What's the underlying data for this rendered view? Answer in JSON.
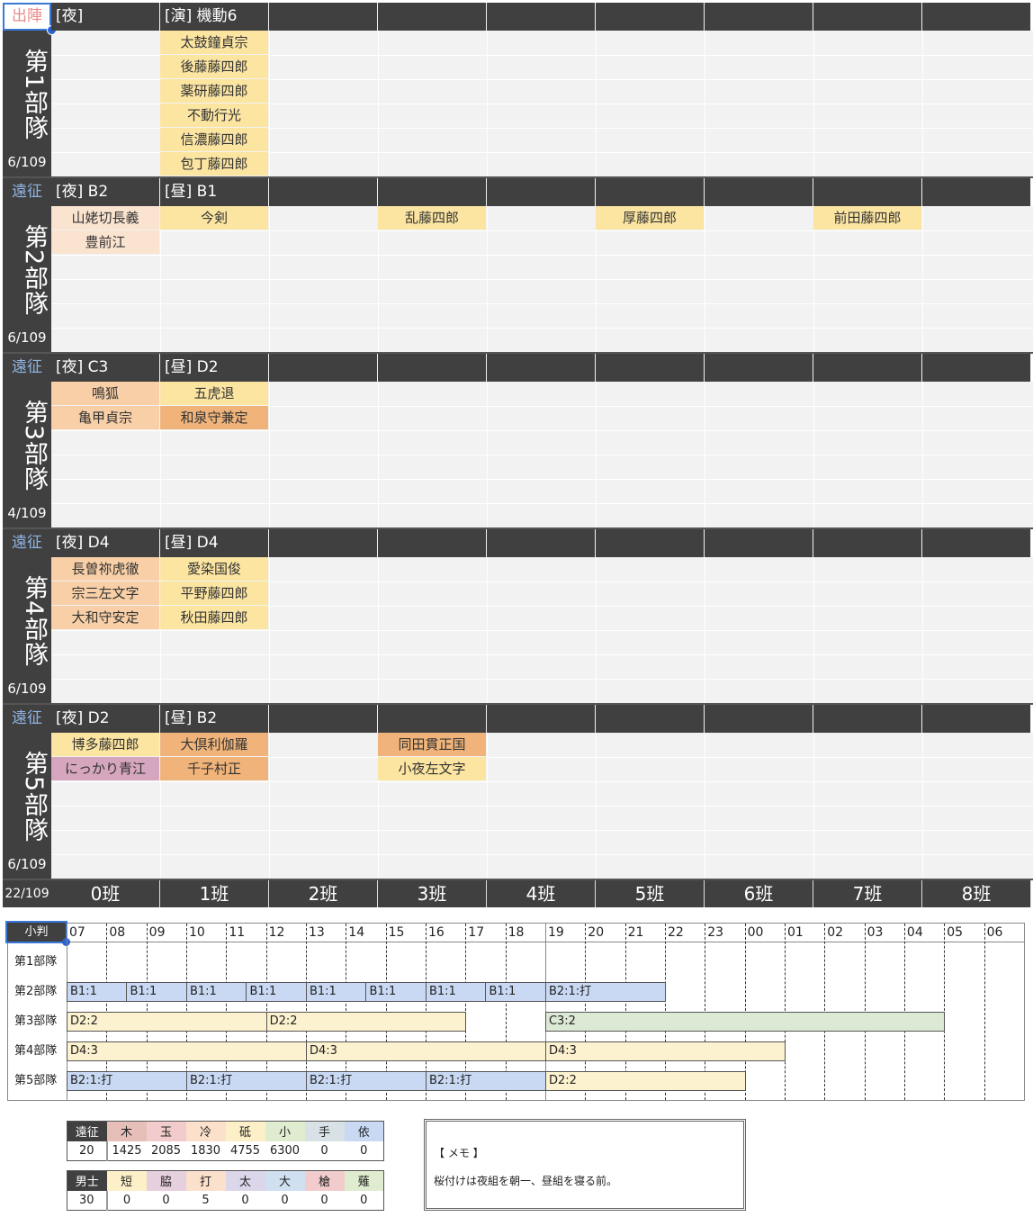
{
  "colors": {
    "yellow": "#fce5a1",
    "orange": "#f0b47a",
    "lightorange": "#f8cfa6",
    "peach": "#fae3cf",
    "pink": "#d5a6bd",
    "blue": "#c9d9f3",
    "cream": "#fdf2cf",
    "green": "#dce9d5",
    "badge_sortie": "#e88b8b",
    "badge_expedition": "#8fb4e3"
  },
  "units": [
    {
      "badge": "出陣",
      "badge_color": "badge_sortie",
      "title": "第1部隊",
      "count": "6/109",
      "headers": [
        "[夜]",
        "[演] 機動6",
        "",
        "",
        "",
        "",
        "",
        "",
        ""
      ],
      "members": [
        [],
        [
          {
            "n": "太鼓鐘貞宗",
            "c": "yellow"
          },
          {
            "n": "後藤藤四郎",
            "c": "yellow"
          },
          {
            "n": "薬研藤四郎",
            "c": "yellow"
          },
          {
            "n": "不動行光",
            "c": "yellow"
          },
          {
            "n": "信濃藤四郎",
            "c": "yellow"
          },
          {
            "n": "包丁藤四郎",
            "c": "yellow"
          }
        ],
        [],
        [],
        [],
        [],
        [],
        [],
        []
      ]
    },
    {
      "badge": "遠征",
      "badge_color": "badge_expedition",
      "title": "第2部隊",
      "count": "6/109",
      "headers": [
        "[夜] B2",
        "[昼] B1",
        "",
        "",
        "",
        "",
        "",
        "",
        ""
      ],
      "members": [
        [
          {
            "n": "山姥切長義",
            "c": "peach"
          },
          {
            "n": "豊前江",
            "c": "peach"
          }
        ],
        [
          {
            "n": "今剣",
            "c": "yellow"
          }
        ],
        [],
        [
          {
            "n": "乱藤四郎",
            "c": "yellow"
          }
        ],
        [],
        [
          {
            "n": "厚藤四郎",
            "c": "yellow"
          }
        ],
        [],
        [
          {
            "n": "前田藤四郎",
            "c": "yellow"
          }
        ],
        []
      ]
    },
    {
      "badge": "遠征",
      "badge_color": "badge_expedition",
      "title": "第3部隊",
      "count": "4/109",
      "headers": [
        "[夜] C3",
        "[昼] D2",
        "",
        "",
        "",
        "",
        "",
        "",
        ""
      ],
      "members": [
        [
          {
            "n": "鳴狐",
            "c": "lightorange"
          },
          {
            "n": "亀甲貞宗",
            "c": "lightorange"
          }
        ],
        [
          {
            "n": "五虎退",
            "c": "yellow"
          },
          {
            "n": "和泉守兼定",
            "c": "orange"
          }
        ],
        [],
        [],
        [],
        [],
        [],
        [],
        []
      ]
    },
    {
      "badge": "遠征",
      "badge_color": "badge_expedition",
      "title": "第4部隊",
      "count": "6/109",
      "headers": [
        "[夜] D4",
        "[昼] D4",
        "",
        "",
        "",
        "",
        "",
        "",
        ""
      ],
      "members": [
        [
          {
            "n": "長曽祢虎徹",
            "c": "lightorange"
          },
          {
            "n": "宗三左文字",
            "c": "lightorange"
          },
          {
            "n": "大和守安定",
            "c": "lightorange"
          }
        ],
        [
          {
            "n": "愛染国俊",
            "c": "yellow"
          },
          {
            "n": "平野藤四郎",
            "c": "yellow"
          },
          {
            "n": "秋田藤四郎",
            "c": "yellow"
          }
        ],
        [],
        [],
        [],
        [],
        [],
        [],
        []
      ]
    },
    {
      "badge": "遠征",
      "badge_color": "badge_expedition",
      "title": "第5部隊",
      "count": "6/109",
      "headers": [
        "[夜] D2",
        "[昼] B2",
        "",
        "",
        "",
        "",
        "",
        "",
        ""
      ],
      "members": [
        [
          {
            "n": "博多藤四郎",
            "c": "yellow"
          },
          {
            "n": "にっかり青江",
            "c": "pink"
          }
        ],
        [
          {
            "n": "大倶利伽羅",
            "c": "orange"
          },
          {
            "n": "千子村正",
            "c": "orange"
          }
        ],
        [],
        [
          {
            "n": "同田貫正国",
            "c": "orange"
          },
          {
            "n": "小夜左文字",
            "c": "yellow"
          }
        ],
        [],
        [],
        [],
        [],
        []
      ]
    }
  ],
  "total": "22/109",
  "teams": [
    "0班",
    "1班",
    "2班",
    "3班",
    "4班",
    "5班",
    "6班",
    "7班",
    "8班"
  ],
  "timeline": {
    "corner": "小判",
    "hours": [
      "07",
      "08",
      "09",
      "10",
      "11",
      "12",
      "13",
      "14",
      "15",
      "16",
      "17",
      "18",
      "19",
      "20",
      "21",
      "22",
      "23",
      "00",
      "01",
      "02",
      "03",
      "04",
      "05",
      "06"
    ],
    "rows": [
      {
        "label": "第1部隊",
        "bars": []
      },
      {
        "label": "第2部隊",
        "bars": [
          {
            "t": "B1:1",
            "s": 0,
            "e": 1.5,
            "c": "blue"
          },
          {
            "t": "B1:1",
            "s": 1.5,
            "e": 3,
            "c": "blue"
          },
          {
            "t": "B1:1",
            "s": 3,
            "e": 4.5,
            "c": "blue"
          },
          {
            "t": "B1:1",
            "s": 4.5,
            "e": 6,
            "c": "blue"
          },
          {
            "t": "B1:1",
            "s": 6,
            "e": 7.5,
            "c": "blue"
          },
          {
            "t": "B1:1",
            "s": 7.5,
            "e": 9,
            "c": "blue"
          },
          {
            "t": "B1:1",
            "s": 9,
            "e": 10.5,
            "c": "blue"
          },
          {
            "t": "B1:1",
            "s": 10.5,
            "e": 12,
            "c": "blue"
          },
          {
            "t": "B2:1:打",
            "s": 12,
            "e": 15,
            "c": "blue"
          }
        ]
      },
      {
        "label": "第3部隊",
        "bars": [
          {
            "t": "D2:2",
            "s": 0,
            "e": 5,
            "c": "cream"
          },
          {
            "t": "D2:2",
            "s": 5,
            "e": 10,
            "c": "cream"
          },
          {
            "t": "C3:2",
            "s": 12,
            "e": 22,
            "c": "green"
          }
        ]
      },
      {
        "label": "第4部隊",
        "bars": [
          {
            "t": "D4:3",
            "s": 0,
            "e": 6,
            "c": "cream"
          },
          {
            "t": "D4:3",
            "s": 6,
            "e": 12,
            "c": "cream"
          },
          {
            "t": "D4:3",
            "s": 12,
            "e": 18,
            "c": "cream"
          }
        ]
      },
      {
        "label": "第5部隊",
        "bars": [
          {
            "t": "B2:1:打",
            "s": 0,
            "e": 3,
            "c": "blue"
          },
          {
            "t": "B2:1:打",
            "s": 3,
            "e": 6,
            "c": "blue"
          },
          {
            "t": "B2:1:打",
            "s": 6,
            "e": 9,
            "c": "blue"
          },
          {
            "t": "B2:1:打",
            "s": 9,
            "e": 12,
            "c": "blue"
          },
          {
            "t": "D2:2",
            "s": 12,
            "e": 17,
            "c": "cream"
          }
        ]
      }
    ]
  },
  "stats": [
    {
      "key": "遠征",
      "value": "20",
      "cols": [
        {
          "h": "木",
          "v": "1425",
          "c": "#e6bfb8"
        },
        {
          "h": "玉",
          "v": "2085",
          "c": "#f2cccc"
        },
        {
          "h": "冷",
          "v": "1830",
          "c": "#fbe0cc"
        },
        {
          "h": "砥",
          "v": "4755",
          "c": "#fdf0c8"
        },
        {
          "h": "小",
          "v": "6300",
          "c": "#dfeccf"
        },
        {
          "h": "手",
          "v": "0",
          "c": "#d7e1e6"
        },
        {
          "h": "依",
          "v": "0",
          "c": "#c9d9f3"
        }
      ]
    },
    {
      "key": "男士",
      "value": "30",
      "cols": [
        {
          "h": "短",
          "v": "0",
          "c": "#fdf0c8"
        },
        {
          "h": "脇",
          "v": "0",
          "c": "#e6d0dd"
        },
        {
          "h": "打",
          "v": "5",
          "c": "#fbe0cc"
        },
        {
          "h": "太",
          "v": "0",
          "c": "#dcd6ea"
        },
        {
          "h": "大",
          "v": "0",
          "c": "#cfe0f1"
        },
        {
          "h": "槍",
          "v": "0",
          "c": "#f2cccc"
        },
        {
          "h": "薙",
          "v": "0",
          "c": "#dfeccf"
        }
      ]
    }
  ],
  "memo": {
    "title": "【 メモ 】",
    "text": "桜付けは夜組を朝一、昼組を寝る前。"
  }
}
